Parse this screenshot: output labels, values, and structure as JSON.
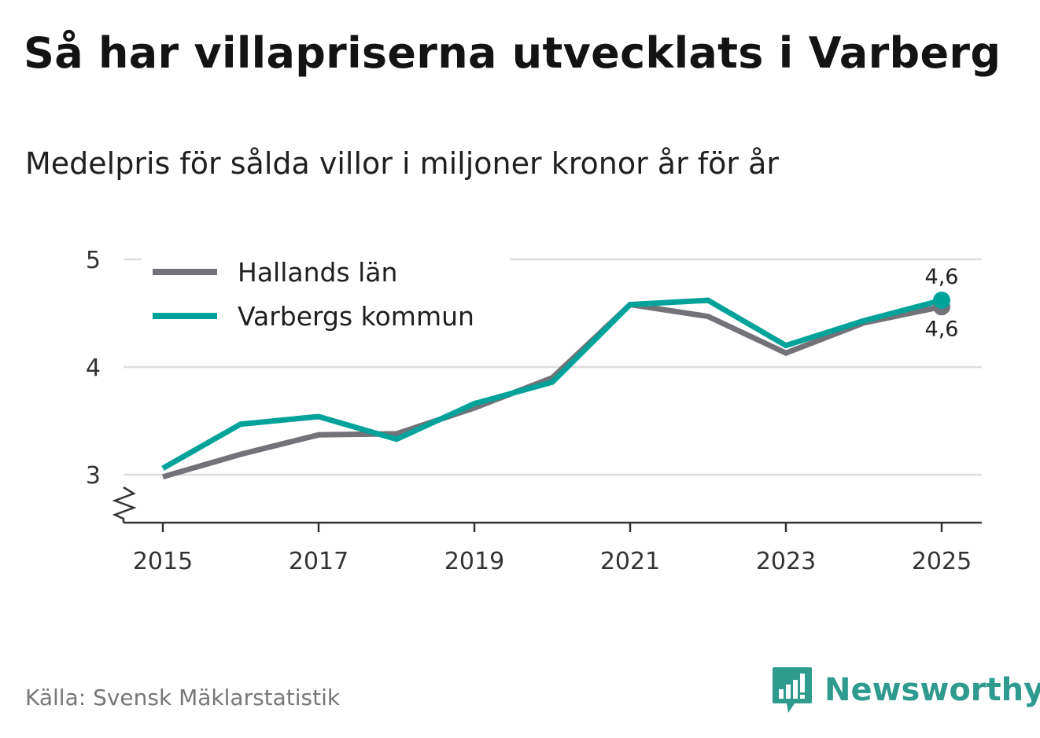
{
  "title": "Så har villapriserna utvecklats i Varberg",
  "subtitle": "Medelpris för sålda villor i miljoner kronor år för år",
  "source": "Källa: Svensk Mäklarstatistik",
  "brand": {
    "name": "Newsworthy",
    "color": "#2f9a8e"
  },
  "chart_data": {
    "type": "line",
    "title": "Så har villapriserna utvecklats i Varberg",
    "subtitle": "Medelpris för sålda villor i miljoner kronor år för år",
    "xlabel": "",
    "ylabel": "",
    "x": [
      2015,
      2016,
      2017,
      2018,
      2019,
      2020,
      2021,
      2022,
      2023,
      2024,
      2025
    ],
    "x_ticks": [
      2015,
      2017,
      2019,
      2021,
      2023,
      2025
    ],
    "x_tick_labels": [
      "2015",
      "2017",
      "2019",
      "2021",
      "2023",
      "2025"
    ],
    "y_ticks": [
      3,
      4,
      5
    ],
    "y_tick_labels": [
      "3",
      "4",
      "5"
    ],
    "ylim": [
      2.55,
      5.05
    ],
    "xlim": [
      2014.5,
      2025.5
    ],
    "axis_break": true,
    "grid": true,
    "legend_position": "top-left",
    "series": [
      {
        "name": "Hallands län",
        "color": "#737279",
        "values": [
          2.98,
          3.19,
          3.37,
          3.38,
          3.62,
          3.9,
          4.58,
          4.47,
          4.13,
          4.41,
          4.56
        ],
        "end_label": "4,6"
      },
      {
        "name": "Varbergs kommun",
        "color": "#00a29a",
        "values": [
          3.06,
          3.47,
          3.54,
          3.33,
          3.66,
          3.86,
          4.58,
          4.62,
          4.2,
          4.43,
          4.62
        ],
        "end_label": "4,6"
      }
    ]
  }
}
